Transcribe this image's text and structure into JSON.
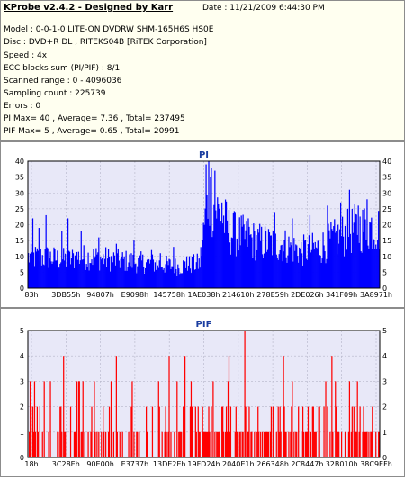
{
  "info": {
    "title": "KProbe v2.4.2 - Designed by Karr",
    "date": "Date : 11/21/2009 6:44:30 PM",
    "lines": [
      "Model : 0-0-1-0 LITE-ON DVDRW SHM-165H6S HS0E",
      "Disc : DVD+R DL , RITEKS04B [RiTEK Corporation]",
      "Speed : 4x",
      "ECC blocks sum (PI/PIF) : 8/1",
      "Scanned range : 0 - 4096036",
      "Sampling count : 225739",
      "Errors : 0",
      "PI Max= 40 , Average= 7.36 , Total= 237495",
      "PIF Max= 5 , Average= 0.65 , Total= 20991"
    ]
  },
  "colors": {
    "pi": "#0000ff",
    "pif": "#ff0000",
    "plot_bg": "#e8e8f8",
    "title": "#1a3da0"
  },
  "chart_data": [
    {
      "type": "area",
      "title": "PI",
      "ylim": [
        0,
        40
      ],
      "yticks": [
        0,
        5,
        10,
        15,
        20,
        25,
        30,
        35,
        40
      ],
      "xticks": [
        "83h",
        "3DB55h",
        "94807h",
        "E9098h",
        "145758h",
        "1AE038h",
        "214610h",
        "278E59h",
        "2DE026h",
        "341F09h",
        "3A8971h"
      ],
      "grid": true,
      "profile": [
        [
          0,
          10
        ],
        [
          20,
          10
        ],
        [
          45,
          9
        ],
        [
          55,
          10
        ],
        [
          75,
          10
        ],
        [
          100,
          9
        ],
        [
          140,
          8
        ],
        [
          170,
          7
        ],
        [
          195,
          8
        ],
        [
          200,
          20
        ],
        [
          205,
          30
        ],
        [
          215,
          25
        ],
        [
          230,
          18
        ],
        [
          260,
          15
        ],
        [
          290,
          14
        ],
        [
          310,
          12
        ],
        [
          330,
          13
        ],
        [
          350,
          16
        ],
        [
          370,
          19
        ],
        [
          390,
          20
        ],
        [
          400,
          19
        ]
      ],
      "spikes": [
        [
          5,
          22
        ],
        [
          12,
          19
        ],
        [
          20,
          23
        ],
        [
          38,
          18
        ],
        [
          45,
          22
        ],
        [
          60,
          18
        ],
        [
          80,
          16
        ],
        [
          100,
          14
        ],
        [
          120,
          15
        ],
        [
          140,
          12
        ],
        [
          150,
          11
        ],
        [
          165,
          13
        ],
        [
          180,
          10
        ],
        [
          202,
          39
        ],
        [
          205,
          40
        ],
        [
          208,
          38
        ],
        [
          212,
          37
        ],
        [
          220,
          27
        ],
        [
          235,
          24
        ],
        [
          250,
          22
        ],
        [
          280,
          24
        ],
        [
          300,
          22
        ],
        [
          320,
          23
        ],
        [
          340,
          26
        ],
        [
          355,
          27
        ],
        [
          365,
          31
        ],
        [
          375,
          26
        ],
        [
          385,
          28
        ]
      ]
    },
    {
      "type": "bar",
      "title": "PIF",
      "ylim": [
        0,
        5
      ],
      "yticks": [
        0,
        1,
        2,
        3,
        4,
        5
      ],
      "xticks": [
        "18h",
        "3C28Eh",
        "90E00h",
        "E3737h",
        "13DE2Eh",
        "19FD24h",
        "2040E1h",
        "266348h",
        "2C8447h",
        "32B010h",
        "38C9EFh"
      ],
      "grid": true,
      "density": [
        [
          0,
          0.35
        ],
        [
          50,
          0.45
        ],
        [
          100,
          0.4
        ],
        [
          140,
          0.3
        ],
        [
          185,
          0.25
        ],
        [
          200,
          0.7
        ],
        [
          240,
          0.65
        ],
        [
          300,
          0.55
        ],
        [
          360,
          0.6
        ],
        [
          400,
          0.55
        ]
      ],
      "spikes": [
        [
          5,
          2
        ],
        [
          18,
          3
        ],
        [
          25,
          3
        ],
        [
          40,
          4
        ],
        [
          55,
          3
        ],
        [
          62,
          3
        ],
        [
          75,
          3
        ],
        [
          100,
          4
        ],
        [
          118,
          3
        ],
        [
          148,
          3
        ],
        [
          160,
          4
        ],
        [
          178,
          4
        ],
        [
          210,
          3
        ],
        [
          228,
          4
        ],
        [
          246,
          5
        ],
        [
          290,
          4
        ],
        [
          300,
          3
        ],
        [
          338,
          3
        ],
        [
          345,
          4
        ],
        [
          365,
          3
        ]
      ]
    }
  ]
}
